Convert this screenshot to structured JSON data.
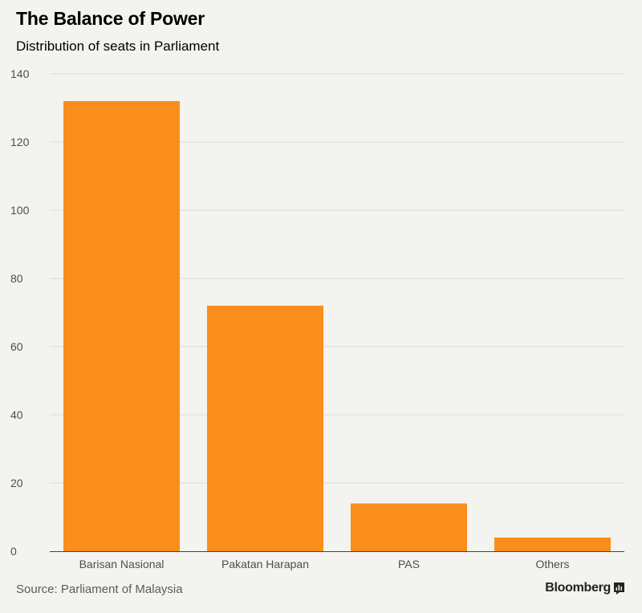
{
  "chart_data": {
    "type": "bar",
    "title": "The Balance of Power",
    "subtitle": "Distribution of seats in Parliament",
    "categories": [
      "Barisan Nasional",
      "Pakatan Harapan",
      "PAS",
      "Others"
    ],
    "values": [
      132,
      72,
      14,
      4
    ],
    "ylim": [
      0,
      140
    ],
    "yticks": [
      0,
      20,
      40,
      60,
      80,
      100,
      120,
      140
    ],
    "xlabel": "",
    "ylabel": "",
    "grid": true,
    "legend": "none",
    "bar_color": "#f98e1d"
  },
  "footer": {
    "source": "Source: Parliament of Malaysia",
    "brand": "Bloomberg",
    "brand_icon": "bloomberg-chart-icon"
  }
}
